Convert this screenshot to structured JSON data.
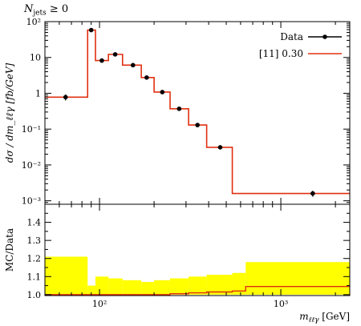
{
  "header": {
    "title_var": "N",
    "title_sub": "jets",
    "title_rel": "≥ 0"
  },
  "colors": {
    "data": "#000000",
    "mc": "#e03010",
    "band": "#ffff00",
    "frame": "#000000"
  },
  "chart_data": [
    {
      "type": "line",
      "panel": "main",
      "ylabel": "dσ / dm_ℓℓγ [fb/GeV]",
      "xscale": "log",
      "yscale": "log",
      "xlim": [
        50,
        2400
      ],
      "ylim": [
        0.0008,
        100
      ],
      "ytick_labels": [
        "10²",
        "10",
        "1",
        "10⁻¹",
        "10⁻²",
        "10⁻³"
      ],
      "ytick_values": [
        100,
        10,
        1,
        0.1,
        0.01,
        0.001
      ],
      "legend_position": "top-right",
      "series": [
        {
          "name": "Data",
          "style": "points",
          "x": [
            65,
            90,
            103,
            122,
            153,
            182,
            222,
            275,
            347,
            463,
            1500
          ],
          "y": [
            0.78,
            58,
            8.2,
            12.2,
            6.1,
            2.75,
            1.08,
            0.37,
            0.13,
            0.031,
            0.0016
          ],
          "yerr": [
            0.15,
            3,
            0.6,
            0.8,
            0.4,
            0.2,
            0.08,
            0.03,
            0.012,
            0.003,
            0.0003
          ]
        },
        {
          "name": "[11] 0.30",
          "style": "step",
          "bin_edges": [
            50,
            86,
            95,
            112,
            134,
            170,
            200,
            245,
            310,
            390,
            540,
            640,
            2400
          ],
          "values": [
            0.78,
            58,
            8.2,
            12.2,
            6.1,
            2.75,
            1.08,
            0.37,
            0.13,
            0.031,
            0.0016,
            0.0016
          ]
        }
      ]
    },
    {
      "type": "area",
      "panel": "ratio",
      "ylabel": "MC/Data",
      "xlabel_var": "m",
      "xlabel_sub": "ℓℓγ",
      "xlabel_unit": "[GeV]",
      "xscale": "log",
      "xlim": [
        50,
        2400
      ],
      "ylim": [
        0.995,
        1.5
      ],
      "ytick_labels": [
        "1.0",
        "1.1",
        "1.2",
        "1.3",
        "1.4"
      ],
      "ytick_values": [
        1.0,
        1.1,
        1.2,
        1.3,
        1.4
      ],
      "xtick_labels": [
        "10²",
        "10³"
      ],
      "xtick_values": [
        100,
        1000
      ],
      "band": {
        "bin_edges": [
          50,
          86,
          95,
          112,
          134,
          170,
          200,
          245,
          310,
          390,
          540,
          640,
          2400
        ],
        "upper": [
          1.21,
          1.05,
          1.1,
          1.09,
          1.08,
          1.07,
          1.08,
          1.09,
          1.1,
          1.11,
          1.12,
          1.18
        ],
        "lower": [
          1.0,
          1.0,
          1.0,
          1.0,
          1.0,
          1.0,
          1.0,
          1.0,
          1.0,
          1.0,
          1.0,
          1.0
        ]
      },
      "series": [
        {
          "name": "[11] 0.30",
          "style": "step",
          "bin_edges": [
            50,
            86,
            95,
            112,
            134,
            170,
            200,
            245,
            310,
            390,
            540,
            640,
            2400
          ],
          "values": [
            1.0,
            1.0,
            1.0,
            1.0,
            1.0,
            1.0,
            1.0,
            1.005,
            1.01,
            1.015,
            1.02,
            1.045
          ]
        }
      ]
    }
  ]
}
